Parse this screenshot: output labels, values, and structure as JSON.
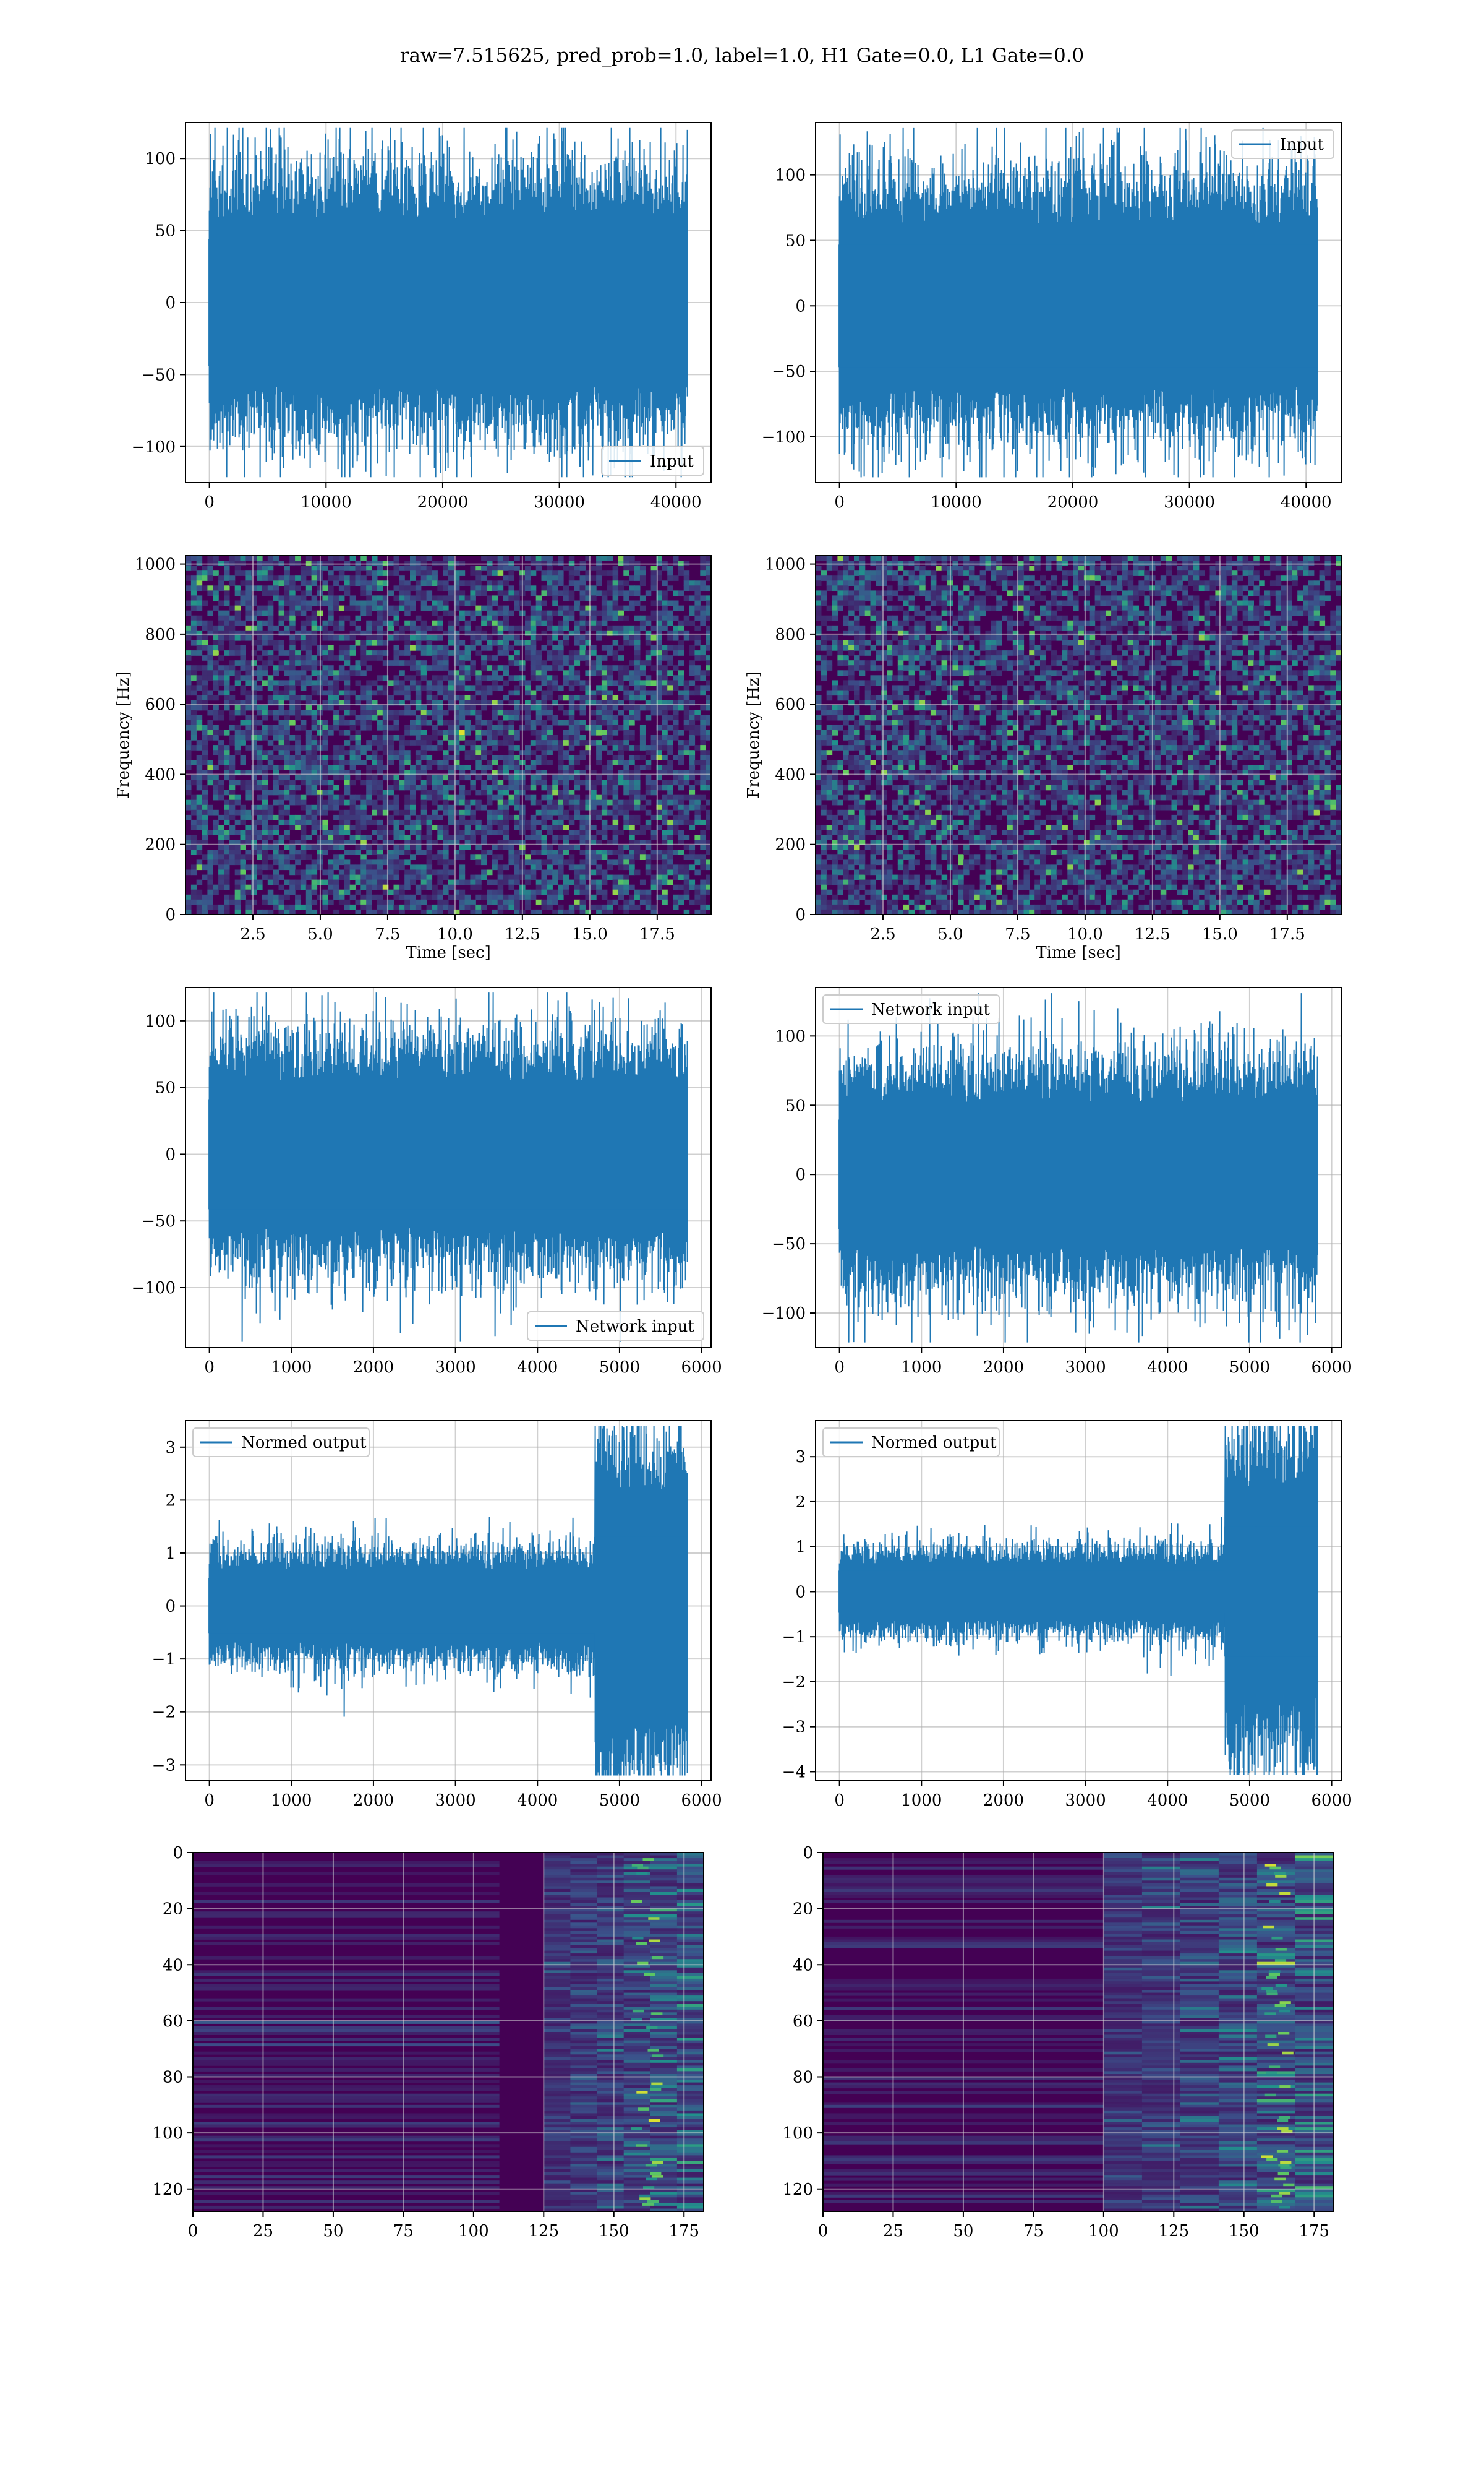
{
  "suptitle": "raw=7.515625, pred_prob=1.0, label=1.0, H1 Gate=0.0, L1 Gate=0.0",
  "colors": {
    "line": "#1f77b4",
    "viridis_dark": "#440154",
    "viridis_mid": "#21918c",
    "viridis_bright": "#fde725",
    "grid": "#b0b0b0"
  },
  "chart_data": [
    {
      "id": "input-h1",
      "type": "line",
      "series": [
        {
          "name": "Input"
        }
      ],
      "legend": "lower-right",
      "x_range": [
        0,
        40960
      ],
      "ylim": [
        -125,
        125
      ],
      "amplitude": 80,
      "xticks": [
        0,
        10000,
        20000,
        30000,
        40000
      ],
      "xtick_labels": [
        "0",
        "10000",
        "20000",
        "30000",
        "40000"
      ],
      "yticks": [
        -100,
        -50,
        0,
        50,
        100
      ],
      "ytick_labels": [
        "−100",
        "−50",
        "0",
        "50",
        "100"
      ],
      "xlabel": "",
      "ylabel": "",
      "grid": true
    },
    {
      "id": "input-l1",
      "type": "line",
      "series": [
        {
          "name": "Input"
        }
      ],
      "legend": "upper-right",
      "x_range": [
        0,
        40960
      ],
      "ylim": [
        -135,
        140
      ],
      "amplitude": 85,
      "xticks": [
        0,
        10000,
        20000,
        30000,
        40000
      ],
      "xtick_labels": [
        "0",
        "10000",
        "20000",
        "30000",
        "40000"
      ],
      "yticks": [
        -100,
        -50,
        0,
        50,
        100
      ],
      "ytick_labels": [
        "−100",
        "−50",
        "0",
        "50",
        "100"
      ],
      "xlabel": "",
      "ylabel": "",
      "grid": true
    },
    {
      "id": "spec-h1",
      "type": "heatmap",
      "colormap": "viridis",
      "xlim": [
        0,
        19.5
      ],
      "ylim": [
        0,
        1024
      ],
      "xticks": [
        2.5,
        5,
        7.5,
        10,
        12.5,
        15,
        17.5
      ],
      "xtick_labels": [
        "2.5",
        "5.0",
        "7.5",
        "10.0",
        "12.5",
        "15.0",
        "17.5"
      ],
      "yticks": [
        0,
        200,
        400,
        600,
        800,
        1000
      ],
      "ytick_labels": [
        "0",
        "200",
        "400",
        "600",
        "800",
        "1000"
      ],
      "xlabel": "Time [sec]",
      "ylabel": "Frequency [Hz]",
      "grid": true
    },
    {
      "id": "spec-l1",
      "type": "heatmap",
      "colormap": "viridis",
      "xlim": [
        0,
        19.5
      ],
      "ylim": [
        0,
        1024
      ],
      "xticks": [
        2.5,
        5,
        7.5,
        10,
        12.5,
        15,
        17.5
      ],
      "xtick_labels": [
        "2.5",
        "5.0",
        "7.5",
        "10.0",
        "12.5",
        "15.0",
        "17.5"
      ],
      "yticks": [
        0,
        200,
        400,
        600,
        800,
        1000
      ],
      "ytick_labels": [
        "0",
        "200",
        "400",
        "600",
        "800",
        "1000"
      ],
      "xlabel": "Time [sec]",
      "ylabel": "Frequency [Hz]",
      "grid": true
    },
    {
      "id": "net-h1",
      "type": "line",
      "series": [
        {
          "name": "Network input"
        }
      ],
      "legend": "lower-right",
      "x_range": [
        0,
        5825
      ],
      "ylim": [
        -145,
        125
      ],
      "amplitude": 75,
      "xticks": [
        0,
        1000,
        2000,
        3000,
        4000,
        5000,
        6000
      ],
      "xtick_labels": [
        "0",
        "1000",
        "2000",
        "3000",
        "4000",
        "5000",
        "6000"
      ],
      "yticks": [
        -100,
        -50,
        0,
        50,
        100
      ],
      "ytick_labels": [
        "−100",
        "−50",
        "0",
        "50",
        "100"
      ],
      "xlabel": "",
      "ylabel": "",
      "grid": true
    },
    {
      "id": "net-l1",
      "type": "line",
      "series": [
        {
          "name": "Network input"
        }
      ],
      "legend": "upper-left",
      "x_range": [
        0,
        5825
      ],
      "ylim": [
        -125,
        135
      ],
      "amplitude": 72,
      "xticks": [
        0,
        1000,
        2000,
        3000,
        4000,
        5000,
        6000
      ],
      "xtick_labels": [
        "0",
        "1000",
        "2000",
        "3000",
        "4000",
        "5000",
        "6000"
      ],
      "yticks": [
        -100,
        -50,
        0,
        50,
        100
      ],
      "ytick_labels": [
        "−100",
        "−50",
        "0",
        "50",
        "100"
      ],
      "xlabel": "",
      "ylabel": "",
      "grid": true
    },
    {
      "id": "out-h1",
      "type": "line",
      "series": [
        {
          "name": "Normed output"
        }
      ],
      "legend": "upper-left",
      "x_range": [
        0,
        5825
      ],
      "ylim": [
        -3.3,
        3.5
      ],
      "amplitude": 0.95,
      "burst_start": 4700,
      "burst_amplitude": 2.9,
      "xticks": [
        0,
        1000,
        2000,
        3000,
        4000,
        5000,
        6000
      ],
      "xtick_labels": [
        "0",
        "1000",
        "2000",
        "3000",
        "4000",
        "5000",
        "6000"
      ],
      "yticks": [
        -3,
        -2,
        -1,
        0,
        1,
        2,
        3
      ],
      "ytick_labels": [
        "−3",
        "−2",
        "−1",
        "0",
        "1",
        "2",
        "3"
      ],
      "xlabel": "",
      "ylabel": "",
      "grid": true
    },
    {
      "id": "out-l1",
      "type": "line",
      "series": [
        {
          "name": "Normed output"
        }
      ],
      "legend": "upper-left",
      "x_range": [
        0,
        5825
      ],
      "ylim": [
        -4.2,
        3.8
      ],
      "amplitude": 0.85,
      "burst_start": 4700,
      "burst_amplitude": 3.2,
      "xticks": [
        0,
        1000,
        2000,
        3000,
        4000,
        5000,
        6000
      ],
      "xtick_labels": [
        "0",
        "1000",
        "2000",
        "3000",
        "4000",
        "5000",
        "6000"
      ],
      "yticks": [
        -4,
        -3,
        -2,
        -1,
        0,
        1,
        2,
        3
      ],
      "ytick_labels": [
        "−4",
        "−3",
        "−2",
        "−1",
        "0",
        "1",
        "2",
        "3"
      ],
      "xlabel": "",
      "ylabel": "",
      "grid": true
    },
    {
      "id": "feat-h1",
      "type": "heatmap",
      "colormap": "viridis",
      "y_inverted": true,
      "xlim": [
        0,
        182
      ],
      "ylim": [
        0,
        128
      ],
      "active_from_column": 125,
      "hot_column": 162,
      "xticks": [
        0,
        25,
        50,
        75,
        100,
        125,
        150,
        175
      ],
      "xtick_labels": [
        "0",
        "25",
        "50",
        "75",
        "100",
        "125",
        "150",
        "175"
      ],
      "yticks": [
        0,
        20,
        40,
        60,
        80,
        100,
        120
      ],
      "ytick_labels": [
        "0",
        "20",
        "40",
        "60",
        "80",
        "100",
        "120"
      ],
      "xlabel": "",
      "ylabel": "",
      "grid": true
    },
    {
      "id": "feat-l1",
      "type": "heatmap",
      "colormap": "viridis",
      "y_inverted": true,
      "xlim": [
        0,
        182
      ],
      "ylim": [
        0,
        128
      ],
      "active_from_column": 100,
      "hot_column": 162,
      "xticks": [
        0,
        25,
        50,
        75,
        100,
        125,
        150,
        175
      ],
      "xtick_labels": [
        "0",
        "25",
        "50",
        "75",
        "100",
        "125",
        "150",
        "175"
      ],
      "yticks": [
        0,
        20,
        40,
        60,
        80,
        100,
        120
      ],
      "ytick_labels": [
        "0",
        "20",
        "40",
        "60",
        "80",
        "100",
        "120"
      ],
      "xlabel": "",
      "ylabel": "",
      "grid": true
    }
  ]
}
